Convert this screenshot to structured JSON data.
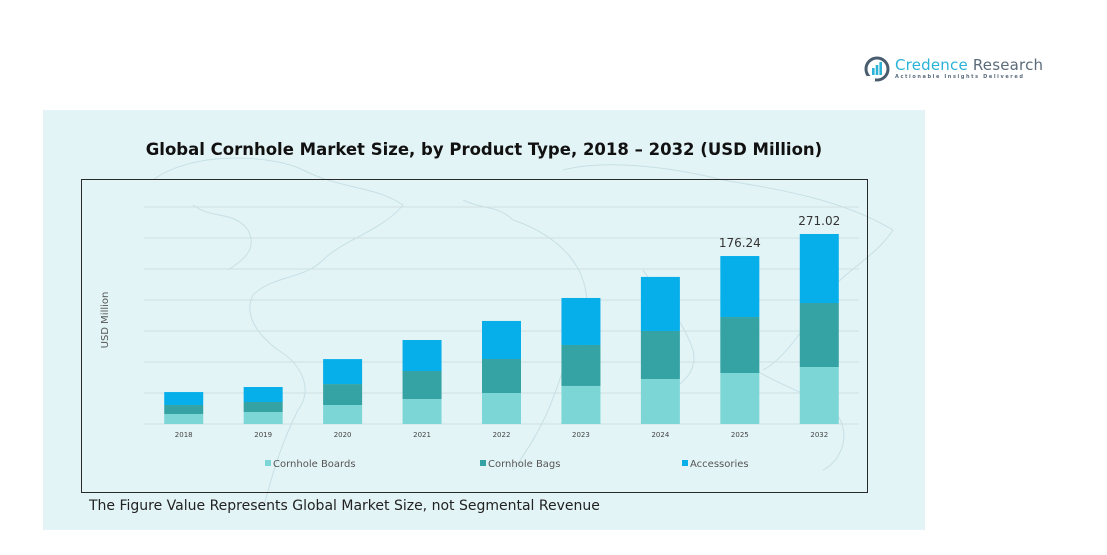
{
  "brand": {
    "name_part1": "Credence",
    "name_part2": " Research",
    "tagline": "Actionable Insights Delivered"
  },
  "footnote": "The Figure Value Represents Global Market Size, not Segmental Revenue",
  "colors": {
    "panel_bg": "#e3f4f6",
    "cornhole_boards": "#7dd6d6",
    "cornhole_bags": "#35a3a3",
    "accessories": "#06aeea",
    "gridline": "#cfdfe2"
  },
  "chart_data": {
    "type": "bar",
    "stacked": true,
    "title": "Global Cornhole  Market Size, by Product Type, 2018 – 2032 (USD Million)",
    "xlabel": "",
    "ylabel": "USD Million",
    "grid": true,
    "legend_position": "bottom",
    "categories": [
      "2018",
      "2019",
      "2020",
      "2021",
      "2022",
      "2023",
      "2024",
      "2025",
      "2032"
    ],
    "series": [
      {
        "name": "Cornhole Boards",
        "values": [
          10.5,
          12.6,
          19.9,
          26.2,
          32.5,
          39.9,
          47.2,
          53.5,
          81.3
        ]
      },
      {
        "name": "Cornhole Bags",
        "values": [
          9.4,
          10.5,
          22.0,
          29.4,
          35.7,
          43.0,
          50.4,
          58.7,
          91.3
        ]
      },
      {
        "name": "Accessories",
        "values": [
          13.6,
          15.7,
          26.2,
          32.5,
          39.9,
          49.3,
          56.7,
          64.0,
          98.4
        ]
      }
    ],
    "data_labels": [
      {
        "category": "2025",
        "text": "176.24"
      },
      {
        "category": "2032",
        "text": "271.02"
      }
    ],
    "legend": [
      "Cornhole Boards",
      "Cornhole Bags",
      "Accessories"
    ]
  }
}
